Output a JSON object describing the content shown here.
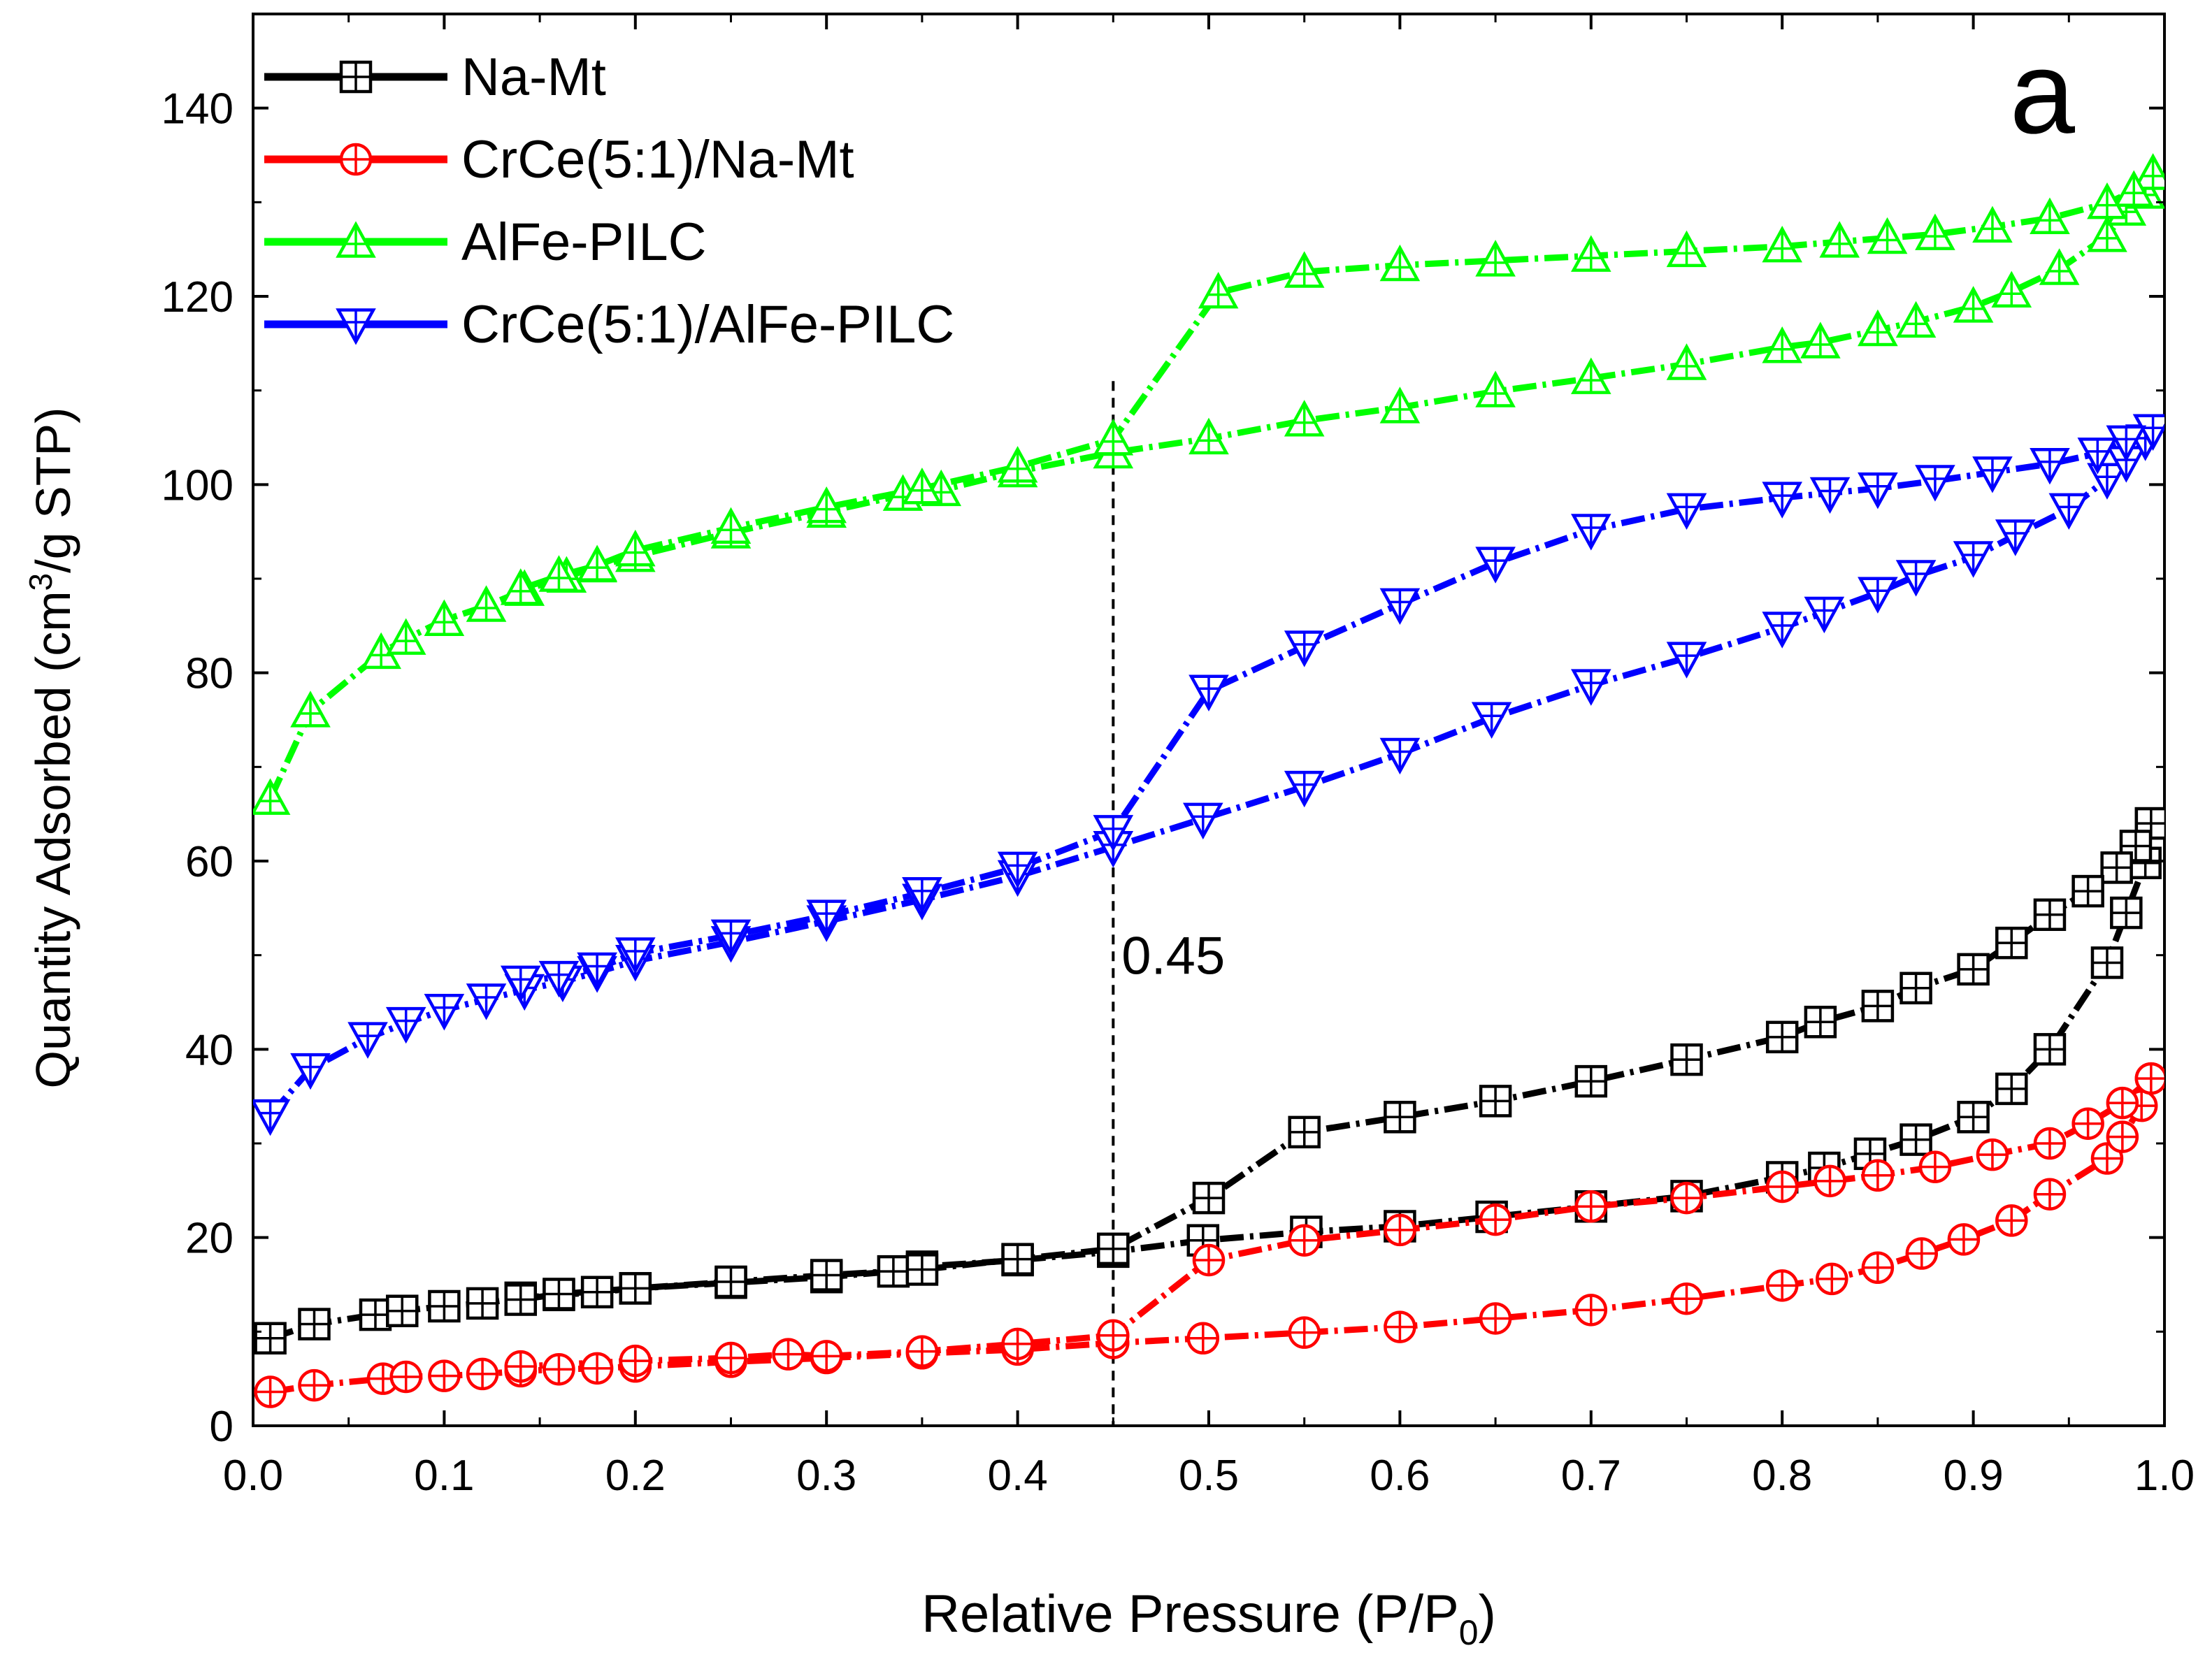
{
  "chart_data": {
    "type": "line",
    "panel_label": "a",
    "title": "",
    "xlabel_main": "Relative Pressure (P/P",
    "xlabel_sub": "0",
    "xlabel_end": ")",
    "ylabel_main": "Quantity Adsorbed (cm",
    "ylabel_sup": "3",
    "ylabel_end": "/g STP)",
    "xlim": [
      0.0,
      1.0
    ],
    "ylim": [
      0,
      150
    ],
    "xticks": [
      {
        "value": 0.0,
        "label": "0.0"
      },
      {
        "value": 0.1,
        "label": "0.1"
      },
      {
        "value": 0.2,
        "label": "0.2"
      },
      {
        "value": 0.3,
        "label": "0.3"
      },
      {
        "value": 0.4,
        "label": "0.4"
      },
      {
        "value": 0.5,
        "label": "0.5"
      },
      {
        "value": 0.6,
        "label": "0.6"
      },
      {
        "value": 0.7,
        "label": "0.7"
      },
      {
        "value": 0.8,
        "label": "0.8"
      },
      {
        "value": 0.9,
        "label": "0.9"
      },
      {
        "value": 1.0,
        "label": "1.0"
      }
    ],
    "yticks": [
      {
        "value": 0,
        "label": "0"
      },
      {
        "value": 20,
        "label": "20"
      },
      {
        "value": 40,
        "label": "40"
      },
      {
        "value": 60,
        "label": "60"
      },
      {
        "value": 80,
        "label": "80"
      },
      {
        "value": 100,
        "label": "100"
      },
      {
        "value": 120,
        "label": "120"
      },
      {
        "value": 140,
        "label": "140"
      }
    ],
    "reference_line": {
      "x": 0.45,
      "label": "0.45"
    },
    "legend": {
      "position": "top-left"
    },
    "series": [
      {
        "name": "Na-Mt",
        "color": "#000000",
        "marker": "square-plus",
        "adsorption": [
          [
            0.009,
            9.3
          ],
          [
            0.032,
            10.8
          ],
          [
            0.064,
            11.8
          ],
          [
            0.078,
            12.2
          ],
          [
            0.1,
            12.7
          ],
          [
            0.12,
            13.0
          ],
          [
            0.14,
            13.6
          ],
          [
            0.16,
            13.9
          ],
          [
            0.18,
            14.2
          ],
          [
            0.2,
            14.6
          ],
          [
            0.25,
            15.2
          ],
          [
            0.3,
            15.8
          ],
          [
            0.335,
            16.4
          ],
          [
            0.35,
            16.9
          ],
          [
            0.4,
            17.6
          ],
          [
            0.45,
            18.5
          ],
          [
            0.497,
            19.7
          ],
          [
            0.551,
            20.6
          ],
          [
            0.6,
            21.2
          ],
          [
            0.648,
            22.2
          ],
          [
            0.7,
            23.3
          ],
          [
            0.75,
            24.4
          ],
          [
            0.8,
            26.4
          ],
          [
            0.822,
            27.4
          ],
          [
            0.846,
            28.9
          ],
          [
            0.87,
            30.4
          ],
          [
            0.9,
            32.8
          ],
          [
            0.92,
            35.8
          ],
          [
            0.94,
            40.0
          ],
          [
            0.97,
            49.2
          ],
          [
            0.98,
            54.5
          ],
          [
            0.99,
            59.8
          ],
          [
            0.993,
            64.0
          ]
        ],
        "desorption": [
          [
            0.993,
            64.0
          ],
          [
            0.985,
            61.6
          ],
          [
            0.975,
            59.3
          ],
          [
            0.96,
            56.8
          ],
          [
            0.94,
            54.3
          ],
          [
            0.92,
            51.3
          ],
          [
            0.9,
            48.5
          ],
          [
            0.87,
            46.5
          ],
          [
            0.85,
            44.6
          ],
          [
            0.82,
            42.9
          ],
          [
            0.8,
            41.3
          ],
          [
            0.75,
            38.9
          ],
          [
            0.7,
            36.6
          ],
          [
            0.65,
            34.5
          ],
          [
            0.6,
            32.8
          ],
          [
            0.55,
            31.2
          ],
          [
            0.5,
            24.2
          ],
          [
            0.45,
            18.8
          ],
          [
            0.4,
            17.7
          ],
          [
            0.35,
            16.6
          ],
          [
            0.3,
            16.0
          ],
          [
            0.25,
            15.3
          ],
          [
            0.2,
            14.6
          ],
          [
            0.16,
            14.0
          ],
          [
            0.14,
            13.4
          ]
        ]
      },
      {
        "name": "CrCe(5:1)/Na-Mt",
        "color": "#ff0000",
        "marker": "circle-plus",
        "adsorption": [
          [
            0.009,
            3.6
          ],
          [
            0.032,
            4.3
          ],
          [
            0.068,
            5.0
          ],
          [
            0.08,
            5.2
          ],
          [
            0.1,
            5.3
          ],
          [
            0.12,
            5.5
          ],
          [
            0.14,
            5.8
          ],
          [
            0.16,
            6.0
          ],
          [
            0.18,
            6.1
          ],
          [
            0.2,
            6.3
          ],
          [
            0.25,
            6.8
          ],
          [
            0.3,
            7.2
          ],
          [
            0.35,
            7.7
          ],
          [
            0.4,
            8.1
          ],
          [
            0.45,
            8.8
          ],
          [
            0.497,
            9.3
          ],
          [
            0.55,
            9.9
          ],
          [
            0.6,
            10.5
          ],
          [
            0.65,
            11.4
          ],
          [
            0.7,
            12.3
          ],
          [
            0.75,
            13.5
          ],
          [
            0.8,
            14.9
          ],
          [
            0.826,
            15.6
          ],
          [
            0.85,
            16.8
          ],
          [
            0.873,
            18.3
          ],
          [
            0.895,
            19.8
          ],
          [
            0.92,
            21.8
          ],
          [
            0.94,
            24.6
          ],
          [
            0.97,
            28.4
          ],
          [
            0.978,
            30.7
          ],
          [
            0.988,
            34.0
          ],
          [
            0.993,
            36.9
          ]
        ],
        "desorption": [
          [
            0.993,
            36.9
          ],
          [
            0.978,
            34.3
          ],
          [
            0.96,
            32.1
          ],
          [
            0.94,
            30.0
          ],
          [
            0.91,
            28.8
          ],
          [
            0.88,
            27.5
          ],
          [
            0.85,
            26.6
          ],
          [
            0.825,
            26.0
          ],
          [
            0.8,
            25.4
          ],
          [
            0.75,
            24.2
          ],
          [
            0.7,
            23.3
          ],
          [
            0.65,
            21.9
          ],
          [
            0.6,
            20.8
          ],
          [
            0.55,
            19.7
          ],
          [
            0.5,
            17.6
          ],
          [
            0.45,
            9.6
          ],
          [
            0.4,
            8.7
          ],
          [
            0.35,
            7.9
          ],
          [
            0.3,
            7.4
          ],
          [
            0.28,
            7.6
          ],
          [
            0.25,
            7.2
          ],
          [
            0.2,
            6.9
          ],
          [
            0.14,
            6.3
          ]
        ]
      },
      {
        "name": "AlFe-PILC",
        "color": "#00ff00",
        "marker": "triangle-up",
        "adsorption": [
          [
            0.009,
            66.6
          ],
          [
            0.03,
            75.9
          ],
          [
            0.067,
            82.1
          ],
          [
            0.08,
            83.6
          ],
          [
            0.1,
            85.6
          ],
          [
            0.122,
            87.1
          ],
          [
            0.142,
            88.8
          ],
          [
            0.164,
            90.2
          ],
          [
            0.18,
            91.3
          ],
          [
            0.2,
            92.4
          ],
          [
            0.25,
            94.9
          ],
          [
            0.3,
            97.1
          ],
          [
            0.34,
            98.9
          ],
          [
            0.36,
            99.4
          ],
          [
            0.4,
            101.4
          ],
          [
            0.45,
            103.4
          ],
          [
            0.5,
            104.9
          ],
          [
            0.55,
            106.8
          ],
          [
            0.6,
            108.2
          ],
          [
            0.65,
            109.9
          ],
          [
            0.7,
            111.3
          ],
          [
            0.75,
            112.8
          ],
          [
            0.8,
            114.6
          ],
          [
            0.82,
            115.1
          ],
          [
            0.85,
            116.4
          ],
          [
            0.87,
            117.3
          ],
          [
            0.9,
            118.9
          ],
          [
            0.92,
            120.5
          ],
          [
            0.945,
            122.9
          ],
          [
            0.97,
            126.4
          ],
          [
            0.98,
            129.2
          ],
          [
            0.99,
            131.0
          ],
          [
            0.994,
            133.0
          ]
        ],
        "desorption": [
          [
            0.994,
            133.0
          ],
          [
            0.984,
            131.2
          ],
          [
            0.97,
            129.9
          ],
          [
            0.94,
            128.3
          ],
          [
            0.91,
            127.4
          ],
          [
            0.88,
            126.6
          ],
          [
            0.855,
            126.2
          ],
          [
            0.83,
            125.8
          ],
          [
            0.8,
            125.3
          ],
          [
            0.75,
            124.8
          ],
          [
            0.7,
            124.3
          ],
          [
            0.65,
            123.8
          ],
          [
            0.6,
            123.3
          ],
          [
            0.55,
            122.6
          ],
          [
            0.505,
            120.4
          ],
          [
            0.45,
            104.8
          ],
          [
            0.4,
            101.9
          ],
          [
            0.35,
            99.6
          ],
          [
            0.3,
            97.6
          ],
          [
            0.25,
            95.4
          ],
          [
            0.2,
            93.0
          ],
          [
            0.18,
            91.4
          ],
          [
            0.16,
            90.3
          ],
          [
            0.14,
            88.9
          ]
        ]
      },
      {
        "name": "CrCe(5:1)/AlFe-PILC",
        "color": "#0000ff",
        "marker": "triangle-down",
        "adsorption": [
          [
            0.009,
            33.0
          ],
          [
            0.03,
            37.9
          ],
          [
            0.06,
            41.2
          ],
          [
            0.08,
            42.8
          ],
          [
            0.1,
            44.2
          ],
          [
            0.122,
            45.3
          ],
          [
            0.142,
            46.3
          ],
          [
            0.162,
            47.2
          ],
          [
            0.18,
            48.2
          ],
          [
            0.2,
            49.4
          ],
          [
            0.25,
            51.4
          ],
          [
            0.3,
            53.6
          ],
          [
            0.35,
            55.9
          ],
          [
            0.4,
            58.4
          ],
          [
            0.45,
            61.5
          ],
          [
            0.497,
            64.5
          ],
          [
            0.55,
            67.9
          ],
          [
            0.6,
            71.4
          ],
          [
            0.648,
            75.2
          ],
          [
            0.7,
            78.7
          ],
          [
            0.75,
            81.6
          ],
          [
            0.8,
            84.8
          ],
          [
            0.822,
            86.4
          ],
          [
            0.85,
            88.5
          ],
          [
            0.87,
            90.3
          ],
          [
            0.9,
            92.3
          ],
          [
            0.922,
            94.6
          ],
          [
            0.95,
            97.4
          ],
          [
            0.97,
            100.6
          ],
          [
            0.98,
            102.4
          ],
          [
            0.99,
            104.7
          ],
          [
            0.994,
            105.8
          ]
        ],
        "desorption": [
          [
            0.994,
            105.8
          ],
          [
            0.98,
            104.6
          ],
          [
            0.965,
            103.3
          ],
          [
            0.94,
            102.2
          ],
          [
            0.91,
            101.3
          ],
          [
            0.88,
            100.4
          ],
          [
            0.85,
            99.6
          ],
          [
            0.825,
            99.1
          ],
          [
            0.8,
            98.6
          ],
          [
            0.75,
            97.4
          ],
          [
            0.7,
            95.2
          ],
          [
            0.65,
            91.7
          ],
          [
            0.6,
            87.3
          ],
          [
            0.55,
            82.8
          ],
          [
            0.5,
            78.1
          ],
          [
            0.45,
            63.2
          ],
          [
            0.4,
            59.3
          ],
          [
            0.35,
            56.6
          ],
          [
            0.3,
            54.2
          ],
          [
            0.25,
            52.1
          ],
          [
            0.2,
            50.2
          ],
          [
            0.18,
            48.6
          ],
          [
            0.16,
            47.7
          ],
          [
            0.14,
            47.2
          ]
        ]
      }
    ]
  }
}
